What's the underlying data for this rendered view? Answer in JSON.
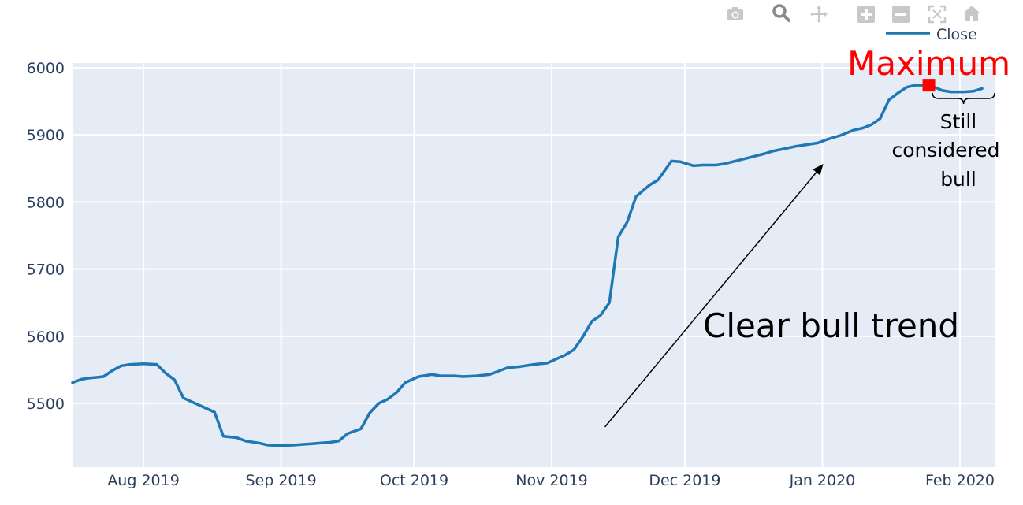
{
  "modebar": {
    "icons": [
      "camera-icon",
      "zoom-icon",
      "pan-icon",
      "zoom-in-icon",
      "zoom-out-icon",
      "autoscale-icon",
      "reset-axes-icon"
    ]
  },
  "colors": {
    "plot_bg": "#e5ecf6",
    "grid": "#ffffff",
    "line": "#1f77b4",
    "tick_text": "#2a3f5f",
    "maximum": "#ff0000",
    "modebar_icon": "#c8c8c8"
  },
  "chart_data": {
    "type": "line",
    "series": [
      {
        "name": "Close",
        "x": [
          "2019-07-16",
          "2019-07-18",
          "2019-07-20",
          "2019-07-23",
          "2019-07-25",
          "2019-07-27",
          "2019-07-29",
          "2019-08-01",
          "2019-08-04",
          "2019-08-06",
          "2019-08-08",
          "2019-08-10",
          "2019-08-12",
          "2019-08-15",
          "2019-08-17",
          "2019-08-19",
          "2019-08-22",
          "2019-08-24",
          "2019-08-27",
          "2019-08-29",
          "2019-09-01",
          "2019-09-04",
          "2019-09-06",
          "2019-09-08",
          "2019-09-10",
          "2019-09-12",
          "2019-09-14",
          "2019-09-16",
          "2019-09-19",
          "2019-09-21",
          "2019-09-23",
          "2019-09-25",
          "2019-09-27",
          "2019-09-29",
          "2019-10-02",
          "2019-10-05",
          "2019-10-07",
          "2019-10-10",
          "2019-10-12",
          "2019-10-15",
          "2019-10-18",
          "2019-10-22",
          "2019-10-25",
          "2019-10-28",
          "2019-10-31",
          "2019-11-02",
          "2019-11-04",
          "2019-11-06",
          "2019-11-08",
          "2019-11-10",
          "2019-11-12",
          "2019-11-14",
          "2019-11-16",
          "2019-11-18",
          "2019-11-20",
          "2019-11-23",
          "2019-11-25",
          "2019-11-28",
          "2019-11-30",
          "2019-12-03",
          "2019-12-05",
          "2019-12-08",
          "2019-12-10",
          "2019-12-13",
          "2019-12-16",
          "2019-12-19",
          "2019-12-21",
          "2019-12-24",
          "2019-12-26",
          "2019-12-28",
          "2019-12-31",
          "2020-01-02",
          "2020-01-05",
          "2020-01-08",
          "2020-01-10",
          "2020-01-12",
          "2020-01-14",
          "2020-01-16",
          "2020-01-18",
          "2020-01-20",
          "2020-01-22",
          "2020-01-24",
          "2020-01-26",
          "2020-01-28",
          "2020-01-30",
          "2020-02-02",
          "2020-02-04",
          "2020-02-06"
        ],
        "y": [
          5531,
          5536,
          5538,
          5540,
          5549,
          5556,
          5558,
          5559,
          5558,
          5545,
          5535,
          5508,
          5502,
          5493,
          5487,
          5451,
          5449,
          5444,
          5441,
          5438,
          5437,
          5438,
          5439,
          5440,
          5441,
          5442,
          5444,
          5455,
          5462,
          5486,
          5500,
          5506,
          5516,
          5531,
          5540,
          5543,
          5541,
          5541,
          5540,
          5541,
          5543,
          5553,
          5555,
          5558,
          5560,
          5566,
          5572,
          5580,
          5599,
          5622,
          5631,
          5650,
          5748,
          5770,
          5808,
          5825,
          5833,
          5861,
          5860,
          5854,
          5855,
          5855,
          5857,
          5862,
          5867,
          5872,
          5876,
          5880,
          5883,
          5885,
          5888,
          5893,
          5899,
          5907,
          5910,
          5915,
          5924,
          5952,
          5962,
          5971,
          5974,
          5974,
          5972,
          5966,
          5964,
          5964,
          5965,
          5969
        ]
      }
    ],
    "xaxis": {
      "type": "date",
      "range": [
        "2019-07-16",
        "2020-02-09"
      ],
      "ticks": [
        "2019-08-01",
        "2019-09-01",
        "2019-10-01",
        "2019-11-01",
        "2019-12-01",
        "2020-01-01",
        "2020-02-01"
      ],
      "tick_labels": [
        "Aug 2019",
        "Sep 2019",
        "Oct 2019",
        "Nov 2019",
        "Dec 2019",
        "Jan 2020",
        "Feb 2020"
      ]
    },
    "yaxis": {
      "range": [
        5405,
        6007
      ],
      "ticks": [
        5500,
        5600,
        5700,
        5800,
        5900,
        6000
      ],
      "tick_labels": [
        "5500",
        "5600",
        "5700",
        "5800",
        "5900",
        "6000"
      ]
    },
    "grid": true,
    "legend": {
      "placement": "top-right",
      "entries": [
        "Close"
      ]
    },
    "annotations": {
      "maximum": {
        "text": "Maximum",
        "x": "2020-01-25",
        "y": 5974
      },
      "trend": {
        "text": "Clear bull trend",
        "arrow_from": [
          "2019-11-13",
          5465
        ],
        "arrow_to": [
          "2020-01-01",
          5855
        ]
      },
      "still": {
        "lines": [
          "Still",
          "considered",
          "bull"
        ],
        "bracket_from": "2020-01-26",
        "bracket_to": "2020-02-09",
        "bracket_y": 5960
      }
    }
  }
}
